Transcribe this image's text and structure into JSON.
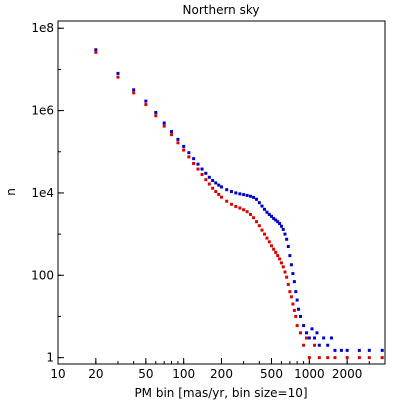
{
  "chart_data": {
    "type": "scatter",
    "title": "Northern sky",
    "xlabel": "PM bin [mas/yr, bin size=10]",
    "ylabel": "n",
    "x_scale": "log",
    "y_scale": "log",
    "xlim": [
      10,
      4000
    ],
    "ylim": [
      0.7,
      150000000
    ],
    "x_ticks": [
      10,
      20,
      50,
      100,
      200,
      500,
      1000,
      2000
    ],
    "x_tick_labels": [
      "10",
      "20",
      "50",
      "100",
      "200",
      "500",
      "1000",
      "2000"
    ],
    "y_ticks": [
      1,
      100,
      10000,
      1000000,
      100000000
    ],
    "y_tick_labels": [
      "1",
      "100",
      "1e4",
      "1e6",
      "1e8"
    ],
    "grid": false,
    "series": [
      {
        "color": "#0000cc",
        "points": [
          [
            20,
            30000000
          ],
          [
            30,
            8000000
          ],
          [
            40,
            3200000
          ],
          [
            50,
            1700000
          ],
          [
            60,
            900000
          ],
          [
            70,
            500000
          ],
          [
            80,
            310000
          ],
          [
            90,
            200000
          ],
          [
            100,
            135000
          ],
          [
            110,
            95000
          ],
          [
            120,
            68000
          ],
          [
            130,
            50000
          ],
          [
            140,
            38000
          ],
          [
            150,
            30000
          ],
          [
            160,
            24000
          ],
          [
            170,
            20000
          ],
          [
            180,
            17500
          ],
          [
            190,
            15500
          ],
          [
            200,
            14000
          ],
          [
            220,
            12000
          ],
          [
            240,
            10800
          ],
          [
            260,
            10000
          ],
          [
            280,
            9500
          ],
          [
            300,
            9100
          ],
          [
            320,
            8700
          ],
          [
            340,
            8300
          ],
          [
            360,
            7800
          ],
          [
            380,
            7000
          ],
          [
            400,
            5800
          ],
          [
            420,
            4800
          ],
          [
            440,
            4000
          ],
          [
            460,
            3400
          ],
          [
            480,
            3000
          ],
          [
            500,
            2700
          ],
          [
            520,
            2400
          ],
          [
            540,
            2200
          ],
          [
            560,
            2000
          ],
          [
            580,
            1800
          ],
          [
            600,
            1550
          ],
          [
            620,
            1300
          ],
          [
            640,
            1000
          ],
          [
            660,
            750
          ],
          [
            680,
            500
          ],
          [
            700,
            300
          ],
          [
            720,
            180
          ],
          [
            740,
            110
          ],
          [
            760,
            70
          ],
          [
            780,
            40
          ],
          [
            800,
            25
          ],
          [
            820,
            15
          ],
          [
            850,
            10
          ],
          [
            900,
            6
          ],
          [
            950,
            4
          ],
          [
            1000,
            3
          ],
          [
            1050,
            5
          ],
          [
            1100,
            3
          ],
          [
            1150,
            4
          ],
          [
            1200,
            2
          ],
          [
            1300,
            3
          ],
          [
            1400,
            2
          ],
          [
            1500,
            3
          ],
          [
            1600,
            1.5
          ],
          [
            1800,
            1.5
          ],
          [
            2000,
            1.5
          ],
          [
            2500,
            1.5
          ],
          [
            3000,
            1.5
          ],
          [
            3800,
            1.5
          ]
        ]
      },
      {
        "color": "#dd0000",
        "points": [
          [
            20,
            26000000
          ],
          [
            30,
            6500000
          ],
          [
            40,
            2700000
          ],
          [
            50,
            1400000
          ],
          [
            60,
            750000
          ],
          [
            70,
            420000
          ],
          [
            80,
            260000
          ],
          [
            90,
            165000
          ],
          [
            100,
            110000
          ],
          [
            110,
            75000
          ],
          [
            120,
            52000
          ],
          [
            130,
            38000
          ],
          [
            140,
            28000
          ],
          [
            150,
            21000
          ],
          [
            160,
            16500
          ],
          [
            170,
            13000
          ],
          [
            180,
            10800
          ],
          [
            190,
            9200
          ],
          [
            200,
            7900
          ],
          [
            220,
            6300
          ],
          [
            240,
            5300
          ],
          [
            260,
            4700
          ],
          [
            280,
            4300
          ],
          [
            300,
            3900
          ],
          [
            320,
            3500
          ],
          [
            340,
            3000
          ],
          [
            360,
            2500
          ],
          [
            380,
            2000
          ],
          [
            400,
            1600
          ],
          [
            420,
            1250
          ],
          [
            440,
            1000
          ],
          [
            460,
            800
          ],
          [
            480,
            650
          ],
          [
            500,
            520
          ],
          [
            520,
            430
          ],
          [
            540,
            360
          ],
          [
            560,
            300
          ],
          [
            580,
            250
          ],
          [
            600,
            200
          ],
          [
            620,
            160
          ],
          [
            640,
            120
          ],
          [
            660,
            90
          ],
          [
            680,
            60
          ],
          [
            700,
            40
          ],
          [
            720,
            30
          ],
          [
            740,
            20
          ],
          [
            760,
            14
          ],
          [
            780,
            10
          ],
          [
            800,
            6
          ],
          [
            850,
            4
          ],
          [
            900,
            2
          ],
          [
            950,
            3
          ],
          [
            1000,
            1
          ],
          [
            1100,
            2
          ],
          [
            1200,
            1
          ],
          [
            1400,
            1
          ],
          [
            1600,
            1
          ],
          [
            2000,
            1
          ],
          [
            2500,
            1
          ],
          [
            3000,
            1
          ],
          [
            3800,
            1
          ]
        ]
      }
    ]
  }
}
